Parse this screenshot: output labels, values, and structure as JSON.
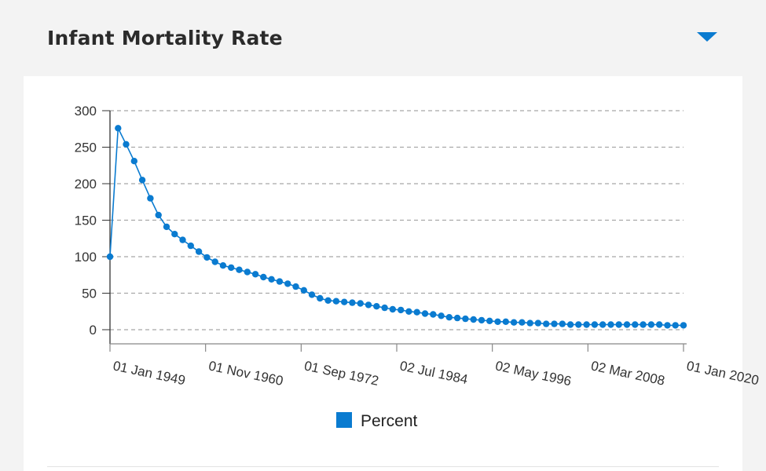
{
  "header": {
    "title": "Infant Mortality Rate",
    "toggle_icon": "chevron-down-icon"
  },
  "colors": {
    "accent": "#0a7bd0",
    "header_bg": "#f3f3f3",
    "grid": "#a8a8a8",
    "axis": "#333333"
  },
  "chart_data": {
    "type": "line",
    "title": "",
    "xlabel": "",
    "ylabel": "",
    "ylim": [
      0,
      300
    ],
    "yticks": [
      300,
      250,
      200,
      150,
      100,
      50,
      0
    ],
    "xlim": [
      "1949-01-01",
      "2020-01-01"
    ],
    "xtick_labels": [
      "01 Jan 1949",
      "01 Nov 1960",
      "01 Sep 1972",
      "02 Jul 1984",
      "02 May 1996",
      "02 Mar 2008",
      "01 Jan 2020"
    ],
    "xtick_dates": [
      "1949-01-01",
      "1960-11-01",
      "1972-09-01",
      "1984-07-02",
      "1996-05-02",
      "2008-03-02",
      "2020-01-01"
    ],
    "grid": true,
    "legend": {
      "position": "bottom",
      "entries": [
        "Percent"
      ]
    },
    "series": [
      {
        "name": "Percent",
        "x": [
          1949,
          1950,
          1951,
          1952,
          1953,
          1954,
          1955,
          1956,
          1957,
          1958,
          1959,
          1960,
          1961,
          1962,
          1963,
          1964,
          1965,
          1966,
          1967,
          1968,
          1969,
          1970,
          1971,
          1972,
          1973,
          1974,
          1975,
          1976,
          1977,
          1978,
          1979,
          1980,
          1981,
          1982,
          1983,
          1984,
          1985,
          1986,
          1987,
          1988,
          1989,
          1990,
          1991,
          1992,
          1993,
          1994,
          1995,
          1996,
          1997,
          1998,
          1999,
          2000,
          2001,
          2002,
          2003,
          2004,
          2005,
          2006,
          2007,
          2008,
          2009,
          2010,
          2011,
          2012,
          2013,
          2014,
          2015,
          2016,
          2017,
          2018,
          2019,
          2020
        ],
        "values": [
          100,
          276,
          254,
          231,
          205,
          180,
          157,
          141,
          131,
          123,
          115,
          107,
          99,
          93,
          88,
          85,
          82,
          79,
          76,
          72,
          69,
          66,
          63,
          59,
          54,
          48,
          43,
          40,
          39,
          38,
          37,
          36,
          34,
          32,
          30,
          28,
          27,
          25,
          24,
          22,
          21,
          19,
          17,
          16,
          15,
          14,
          13,
          12,
          11,
          11,
          10,
          10,
          9,
          9,
          8,
          8,
          8,
          7,
          7,
          7,
          7,
          7,
          7,
          7,
          7,
          7,
          7,
          7,
          7,
          6,
          6,
          6
        ]
      }
    ]
  }
}
